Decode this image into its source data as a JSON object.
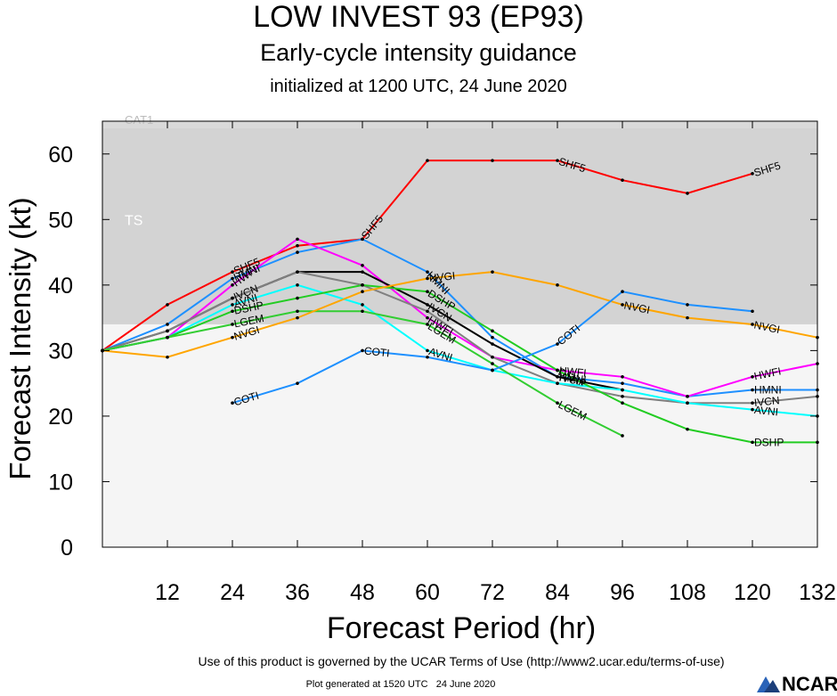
{
  "header": {
    "title": "LOW INVEST 93 (EP93)",
    "subtitle": "Early-cycle intensity guidance",
    "initialized": "initialized at 1200 UTC, 24 June 2020"
  },
  "footer": {
    "terms": "Use of this product is governed by the UCAR Terms of Use (http://www2.ucar.edu/terms-of-use)",
    "plot_generated": "Plot generated at 1520 UTC   24 June 2020",
    "logo_text": "NCAR"
  },
  "chart_data": {
    "type": "line",
    "xlabel": "Forecast Period (hr)",
    "ylabel": "Forecast Intensity (kt)",
    "xlim": [
      0,
      132
    ],
    "ylim": [
      0,
      65
    ],
    "xticks": [
      12,
      24,
      36,
      48,
      60,
      72,
      84,
      96,
      108,
      120,
      132
    ],
    "yticks": [
      0,
      10,
      20,
      30,
      40,
      50,
      60
    ],
    "bands": [
      {
        "label": "TS",
        "from": 34,
        "to": 64,
        "color": "#d3d3d3"
      },
      {
        "label": "CAT1",
        "from": 64,
        "to": 65,
        "color": "#d9d9d9"
      },
      {
        "label": "",
        "from": 0,
        "to": 34,
        "color": "#f5f5f5"
      }
    ],
    "series": [
      {
        "name": "SHF5",
        "color": "#ff0000",
        "x": [
          0,
          12,
          24,
          36,
          48,
          60,
          72,
          84,
          96,
          108,
          120
        ],
        "y": [
          30,
          37,
          42,
          46,
          47,
          59,
          59,
          59,
          56,
          54,
          57
        ],
        "labels": [
          {
            "x": 24
          },
          {
            "x": 48
          },
          {
            "x": 84
          },
          {
            "x": 120
          }
        ]
      },
      {
        "name": "HMNI",
        "color": "#1e90ff",
        "x": [
          0,
          12,
          24,
          36,
          48,
          60,
          72,
          84,
          96,
          108,
          120,
          132
        ],
        "y": [
          30,
          34,
          41,
          45,
          47,
          42,
          32,
          26,
          25,
          23,
          24,
          24
        ],
        "labels": [
          {
            "x": 24
          },
          {
            "x": 60
          },
          {
            "x": 84
          },
          {
            "x": 120
          }
        ]
      },
      {
        "name": "HWFI",
        "color": "#ff00ff",
        "x": [
          0,
          12,
          24,
          36,
          48,
          60,
          72,
          84,
          96,
          108,
          120,
          132
        ],
        "y": [
          30,
          32,
          40,
          47,
          43,
          35,
          29,
          27,
          26,
          23,
          26,
          28
        ],
        "labels": [
          {
            "x": 24
          },
          {
            "x": 60
          },
          {
            "x": 84
          },
          {
            "x": 120
          }
        ]
      },
      {
        "name": "IVCN",
        "color": "#000000",
        "x": [
          0,
          12,
          24,
          36,
          48,
          60,
          72,
          84,
          96
        ],
        "y": [
          30,
          33,
          38,
          42,
          42,
          37,
          31,
          26,
          24
        ],
        "labels": [
          {
            "x": 24
          },
          {
            "x": 60
          },
          {
            "x": 84
          }
        ]
      },
      {
        "name": "IVCN",
        "color": "#808080",
        "x": [
          0,
          12,
          24,
          36,
          48,
          60,
          72,
          84,
          96,
          108,
          120,
          132
        ],
        "y": [
          30,
          33,
          38,
          42,
          40,
          36,
          29,
          25,
          23,
          22,
          22,
          23
        ],
        "labels": [
          {
            "x": 120
          }
        ]
      },
      {
        "name": "AVNI",
        "color": "#00ffff",
        "x": [
          0,
          12,
          24,
          36,
          48,
          60,
          72,
          84,
          96,
          108,
          120,
          132
        ],
        "y": [
          30,
          32,
          37,
          40,
          37,
          30,
          27,
          25,
          24,
          22,
          21,
          20
        ],
        "labels": [
          {
            "x": 24
          },
          {
            "x": 60
          },
          {
            "x": 120
          }
        ]
      },
      {
        "name": "DSHP",
        "color": "#22cc22",
        "x": [
          0,
          12,
          24,
          36,
          48,
          60,
          72,
          84,
          96,
          108,
          120,
          132
        ],
        "y": [
          30,
          32,
          36,
          38,
          40,
          39,
          33,
          27,
          22,
          18,
          16,
          16
        ],
        "labels": [
          {
            "x": 24
          },
          {
            "x": 60
          },
          {
            "x": 84
          },
          {
            "x": 120
          }
        ]
      },
      {
        "name": "LGEM",
        "color": "#32cd32",
        "x": [
          0,
          12,
          24,
          36,
          48,
          60,
          72,
          84,
          96
        ],
        "y": [
          30,
          32,
          34,
          36,
          36,
          34,
          28,
          22,
          17
        ],
        "labels": [
          {
            "x": 24
          },
          {
            "x": 60
          },
          {
            "x": 84
          }
        ]
      },
      {
        "name": "NVGI",
        "color": "#ffa500",
        "x": [
          0,
          12,
          24,
          36,
          48,
          60,
          72,
          84,
          96,
          108,
          120,
          132
        ],
        "y": [
          30,
          29,
          32,
          35,
          39,
          41,
          42,
          40,
          37,
          35,
          34,
          32
        ],
        "labels": [
          {
            "x": 24
          },
          {
            "x": 60
          },
          {
            "x": 96
          },
          {
            "x": 120
          }
        ]
      },
      {
        "name": "COTI",
        "color": "#1e90ff",
        "x": [
          24,
          36,
          48,
          60,
          72,
          84,
          96,
          108,
          120
        ],
        "y": [
          22,
          25,
          30,
          29,
          27,
          31,
          39,
          37,
          36
        ],
        "labels": [
          {
            "x": 24
          },
          {
            "x": 48
          },
          {
            "x": 84
          }
        ]
      }
    ]
  }
}
